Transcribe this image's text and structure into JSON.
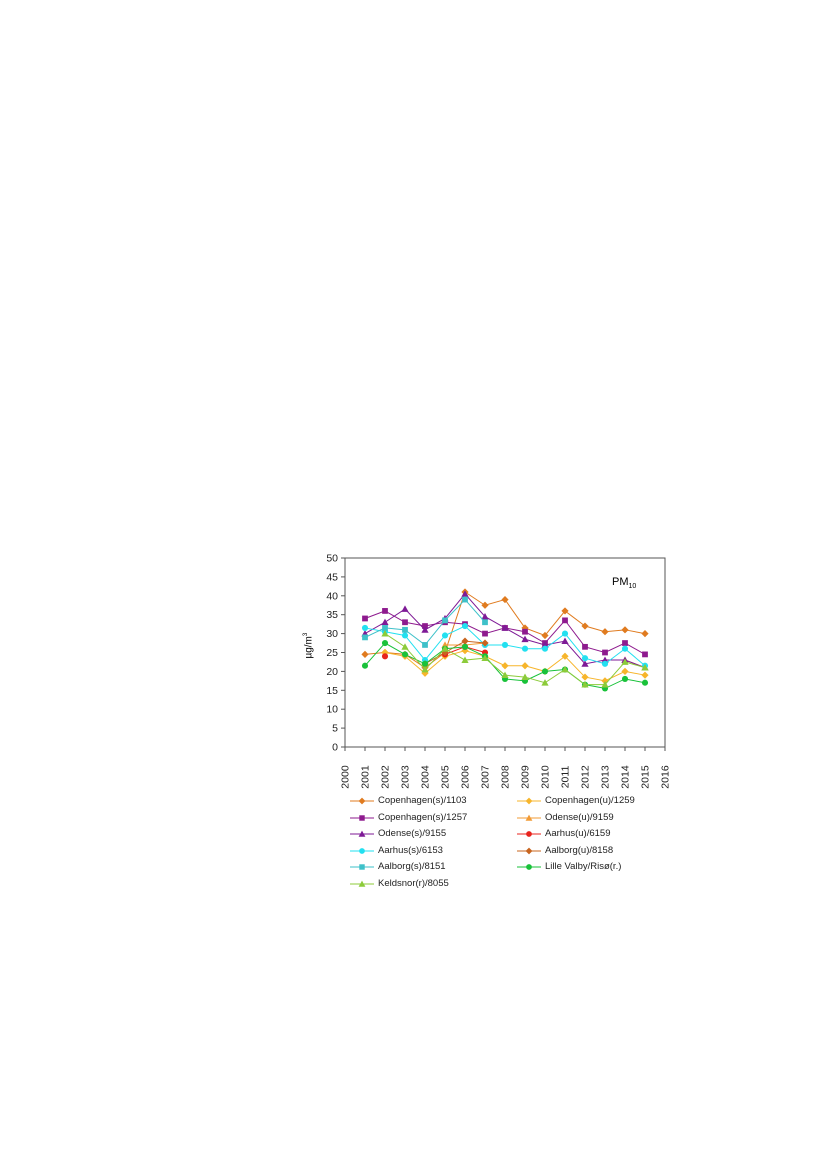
{
  "chart_data": {
    "type": "line",
    "annotation_main": "PM",
    "annotation_sub": "10",
    "ylabel_main": "µg/m",
    "ylabel_sup": "3",
    "xlim": [
      2000,
      2016
    ],
    "ylim": [
      0,
      50
    ],
    "x_ticks": [
      2000,
      2001,
      2002,
      2003,
      2004,
      2005,
      2006,
      2007,
      2008,
      2009,
      2010,
      2011,
      2012,
      2013,
      2014,
      2015,
      2016
    ],
    "y_ticks": [
      0,
      5,
      10,
      15,
      20,
      25,
      30,
      35,
      40,
      45,
      50
    ],
    "x_tick_labels": [
      "2000",
      "2001",
      "2002",
      "2003",
      "2004",
      "2005",
      "2006",
      "2007",
      "2008",
      "2009",
      "2010",
      "2011",
      "2012",
      "2013",
      "2014",
      "2015",
      "2016"
    ],
    "y_tick_labels": [
      "0",
      "5",
      "10",
      "15",
      "20",
      "25",
      "30",
      "35",
      "40",
      "45",
      "50"
    ],
    "grid": false,
    "legend_position": "bottom",
    "series": [
      {
        "name": "Copenhagen(s)/1103",
        "color": "#E07B1F",
        "marker": "diamond",
        "x": [
          2001,
          2002,
          2003,
          2004,
          2005,
          2006,
          2007,
          2008,
          2009,
          2010,
          2011,
          2012,
          2013,
          2014,
          2015
        ],
        "y": [
          24.5,
          25,
          24.5,
          21,
          25,
          41,
          37.5,
          39,
          31.5,
          29.5,
          36,
          32,
          30.5,
          31,
          30
        ]
      },
      {
        "name": "Copenhagen(u)/1259",
        "color": "#F7B52B",
        "marker": "diamond",
        "x": [
          2001,
          2002,
          2003,
          2004,
          2005,
          2006,
          2007,
          2008,
          2009,
          2010,
          2011,
          2012,
          2013,
          2014,
          2015
        ],
        "y": [
          null,
          25,
          24,
          19.5,
          24,
          25.5,
          24,
          21.5,
          21.5,
          20,
          24,
          18.5,
          17.5,
          20,
          19
        ]
      },
      {
        "name": "Copenhagen(s)/1257",
        "color": "#8E1A8E",
        "marker": "square",
        "x": [
          2001,
          2002,
          2003,
          2004,
          2005,
          2006,
          2007,
          2008,
          2009,
          2010,
          2011,
          2012,
          2013,
          2014,
          2015
        ],
        "y": [
          34,
          36,
          33,
          32,
          33,
          32.5,
          30,
          31.5,
          30.5,
          27.5,
          33.5,
          26.5,
          25,
          27.5,
          24.5
        ]
      },
      {
        "name": "Odense(u)/9159",
        "color": "#F29B35",
        "marker": "triangle",
        "x": [
          2001,
          2002,
          2003,
          2004,
          2005,
          2006,
          2007,
          2008,
          2009,
          2010,
          2011,
          2012,
          2013,
          2014,
          2015
        ],
        "y": [
          null,
          null,
          null,
          null,
          27,
          27,
          27.5,
          null,
          null,
          null,
          null,
          null,
          null,
          23,
          21
        ]
      },
      {
        "name": "Odense(s)/9155",
        "color": "#7E1A96",
        "marker": "triangle",
        "x": [
          2001,
          2002,
          2003,
          2004,
          2005,
          2006,
          2007,
          2008,
          2009,
          2010,
          2011,
          2012,
          2013,
          2014,
          2015
        ],
        "y": [
          30,
          33,
          36.5,
          31,
          34,
          40.5,
          34.5,
          31.5,
          28.5,
          27,
          28,
          22,
          23,
          23,
          21
        ]
      },
      {
        "name": "Aarhus(u)/6159",
        "color": "#E8231C",
        "marker": "circle",
        "x": [
          2001,
          2002,
          2003,
          2004,
          2005,
          2006,
          2007,
          2008,
          2009,
          2010,
          2011,
          2012,
          2013,
          2014,
          2015
        ],
        "y": [
          null,
          24,
          null,
          null,
          24.5,
          26.5,
          25,
          null,
          null,
          null,
          null,
          null,
          null,
          null,
          null
        ]
      },
      {
        "name": "Aarhus(s)/6153",
        "color": "#22E0F0",
        "marker": "circle",
        "x": [
          2001,
          2002,
          2003,
          2004,
          2005,
          2006,
          2007,
          2008,
          2009,
          2010,
          2011,
          2012,
          2013,
          2014,
          2015
        ],
        "y": [
          31.5,
          30.5,
          29.5,
          23,
          29.5,
          32,
          27,
          27,
          26,
          26,
          30,
          23.5,
          22,
          26,
          21.5
        ]
      },
      {
        "name": "Aalborg(u)/8158",
        "color": "#C8641E",
        "marker": "diamond",
        "x": [
          2001,
          2002,
          2003,
          2004,
          2005,
          2006,
          2007,
          2008,
          2009,
          2010,
          2011,
          2012,
          2013,
          2014,
          2015
        ],
        "y": [
          null,
          null,
          null,
          22,
          25,
          28,
          27.5,
          null,
          null,
          null,
          null,
          null,
          null,
          null,
          null
        ]
      },
      {
        "name": "Aalborg(s)/8151",
        "color": "#3EC1C9",
        "marker": "square",
        "x": [
          2001,
          2002,
          2003,
          2004,
          2005,
          2006,
          2007,
          2008,
          2009,
          2010,
          2011,
          2012,
          2013,
          2014,
          2015
        ],
        "y": [
          29,
          31.5,
          31,
          27,
          33.5,
          39,
          33,
          null,
          null,
          null,
          null,
          null,
          null,
          null,
          null
        ]
      },
      {
        "name": "Lille Valby/Risø(r.)",
        "color": "#19C23A",
        "marker": "circle",
        "x": [
          2001,
          2002,
          2003,
          2004,
          2005,
          2006,
          2007,
          2008,
          2009,
          2010,
          2011,
          2012,
          2013,
          2014,
          2015
        ],
        "y": [
          21.5,
          27.5,
          24.5,
          22,
          26,
          26.5,
          24,
          18,
          17.5,
          20,
          20.5,
          16.5,
          15.5,
          18,
          17
        ]
      },
      {
        "name": "Keldsnor(r)/8055",
        "color": "#8CCB3A",
        "marker": "triangle",
        "x": [
          2001,
          2002,
          2003,
          2004,
          2005,
          2006,
          2007,
          2008,
          2009,
          2010,
          2011,
          2012,
          2013,
          2014,
          2015
        ],
        "y": [
          null,
          30,
          26.5,
          20.5,
          26,
          23,
          23.5,
          19,
          18.5,
          17,
          20.5,
          16.5,
          16.5,
          22.5,
          21
        ]
      }
    ]
  }
}
